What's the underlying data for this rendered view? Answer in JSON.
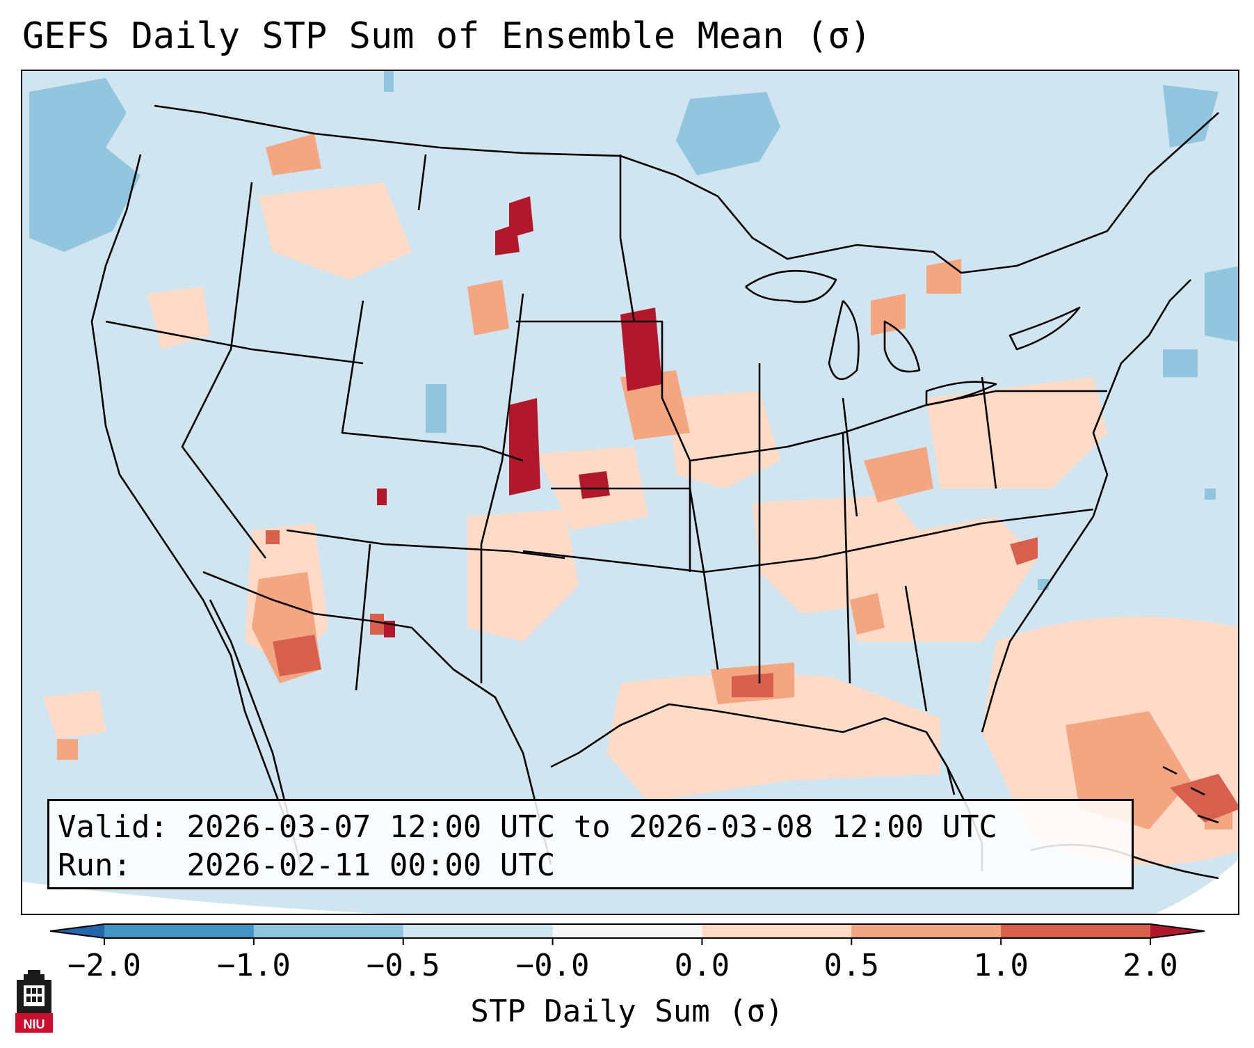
{
  "title": "GEFS Daily STP Sum of Ensemble Mean (σ)",
  "info": {
    "valid_label": "Valid:",
    "valid_value": "2026-03-07 12:00 UTC to 2026-03-08 12:00 UTC",
    "run_label": "Run:",
    "run_value": "2026-02-11 00:00 UTC"
  },
  "colorbar": {
    "label": "STP Daily Sum (σ)",
    "ticks": [
      "−2.0",
      "−1.0",
      "−0.5",
      "−0.0",
      "0.0",
      "0.5",
      "1.0",
      "2.0"
    ],
    "colors": [
      "#4393c3",
      "#92c5de",
      "#d1e5f0",
      "#f7f7f7",
      "#fddbc7",
      "#f4a582",
      "#d6604d"
    ],
    "extend_low": "#2166ac",
    "extend_high": "#b2182b"
  },
  "logo": {
    "text": "NIU"
  },
  "map": {
    "background_color": "#d1e5f0",
    "region": "Continental United States and adjacent ocean",
    "hotspots": [
      {
        "area": "Eastern Montana",
        "value": 2.0
      },
      {
        "area": "Eastern Colorado",
        "value": 2.0
      },
      {
        "area": "Eastern Kansas",
        "value": 2.0
      },
      {
        "area": "Western Kansas",
        "value": 2.0
      },
      {
        "area": "Southern Arizona",
        "value": 1.0
      },
      {
        "area": "Northern Gulf of Mexico",
        "value": 1.0
      },
      {
        "area": "Southeast Atlantic near Bahamas",
        "value": 1.0
      }
    ]
  }
}
